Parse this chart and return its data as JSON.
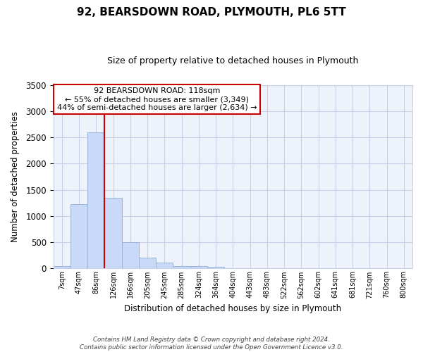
{
  "title": "92, BEARSDOWN ROAD, PLYMOUTH, PL6 5TT",
  "subtitle": "Size of property relative to detached houses in Plymouth",
  "xlabel": "Distribution of detached houses by size in Plymouth",
  "ylabel": "Number of detached properties",
  "bar_labels": [
    "7sqm",
    "47sqm",
    "86sqm",
    "126sqm",
    "166sqm",
    "205sqm",
    "245sqm",
    "285sqm",
    "324sqm",
    "364sqm",
    "404sqm",
    "443sqm",
    "483sqm",
    "522sqm",
    "562sqm",
    "602sqm",
    "641sqm",
    "681sqm",
    "721sqm",
    "760sqm",
    "800sqm"
  ],
  "bar_values": [
    50,
    1230,
    2590,
    1350,
    500,
    200,
    110,
    50,
    40,
    30,
    0,
    0,
    0,
    0,
    0,
    0,
    0,
    0,
    0,
    0,
    0
  ],
  "bar_color": "#c9daf8",
  "bar_edge_color": "#9ab5d9",
  "vline_x": 2.5,
  "vline_color": "#cc0000",
  "ylim": [
    0,
    3500
  ],
  "yticks": [
    0,
    500,
    1000,
    1500,
    2000,
    2500,
    3000,
    3500
  ],
  "annotation_title": "92 BEARSDOWN ROAD: 118sqm",
  "annotation_line1": "← 55% of detached houses are smaller (3,349)",
  "annotation_line2": "44% of semi-detached houses are larger (2,634) →",
  "footer_line1": "Contains HM Land Registry data © Crown copyright and database right 2024.",
  "footer_line2": "Contains public sector information licensed under the Open Government Licence v3.0.",
  "bg_color": "#ffffff",
  "plot_bg_color": "#eef2fb",
  "grid_color": "#c8d0e8"
}
